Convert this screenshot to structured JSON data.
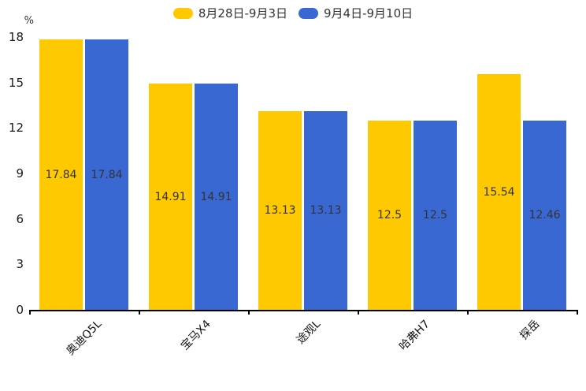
{
  "chart_data": {
    "type": "bar",
    "title": "",
    "ylabel": "%",
    "xlabel": "",
    "ylim": [
      0,
      18
    ],
    "yticks": [
      0,
      3,
      6,
      9,
      12,
      15,
      18
    ],
    "grid": false,
    "legend_position": "top-center",
    "bar_value_labels": "inside-middle",
    "categories": [
      "奥迪Q5L",
      "宝马X4",
      "途观L",
      "哈弗H7",
      "探岳"
    ],
    "series": [
      {
        "name": "8月28日-9月3日",
        "color": "#FFC900",
        "values": [
          17.84,
          14.91,
          13.13,
          12.5,
          15.54
        ]
      },
      {
        "name": "9月4日-9月10日",
        "color": "#3A68D2",
        "values": [
          17.84,
          14.91,
          13.13,
          12.5,
          12.46
        ]
      }
    ],
    "colors": {
      "series1": "#FFC900",
      "series2": "#3A68D2",
      "axis": "#000000",
      "label_text": "#333333"
    }
  }
}
